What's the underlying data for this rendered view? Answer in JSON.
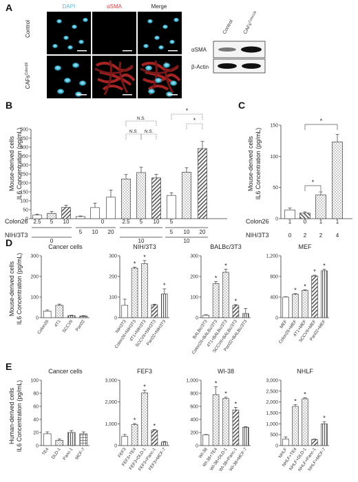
{
  "panel_a": {
    "label": "A",
    "columns": [
      "DAPI",
      "αSMA",
      "Merge"
    ],
    "column_colors": [
      "#5fb8d6",
      "#d94040",
      "#ffffff"
    ],
    "rows": [
      "Control",
      "CAFs^Colon26"
    ],
    "blot": {
      "lanes": [
        "Control",
        "CAFs^Colon26"
      ],
      "bands": [
        "αSMA",
        "β-Actin"
      ]
    }
  },
  "panel_b": {
    "label": "B",
    "ylabel": [
      "Mouse-derived cells",
      "IL6 Concentration (pg/mL)"
    ],
    "row_labels": [
      "Colon26",
      "NIH/3T3"
    ],
    "colon26_ticks": [
      "2.5",
      "5",
      "10",
      "0",
      "2.5",
      "5",
      "10",
      "5"
    ],
    "nih_group_labels": [
      "0",
      "10",
      "10"
    ],
    "nih_ticks": [
      "5",
      "10",
      "20",
      "5",
      "10",
      "20"
    ],
    "sig": [
      "N.S.",
      "N.S.",
      "N.S.",
      "*",
      "*"
    ]
  },
  "panel_c": {
    "label": "C",
    "ylabel": [
      "Mouse-derived cells",
      "IL6 Concentration (pg/mL)"
    ],
    "row_labels": [
      "Colon26",
      "NIH/3T3"
    ],
    "colon26_values": [
      "1",
      "0",
      "1",
      "1"
    ],
    "nih_values": [
      "0",
      "2",
      "2",
      "4"
    ],
    "sig": [
      "*",
      "*"
    ]
  },
  "panel_d": {
    "label": "D",
    "ylabel": [
      "Mouse-derived cells",
      "IL6 Concentration (pg/mL)"
    ],
    "titles": [
      "Cancer cells",
      "NIH/3T3",
      "BALBc/3T3",
      "MEF"
    ]
  },
  "panel_e": {
    "label": "E",
    "ylabel": [
      "Human-derived cells",
      "IL6 Concentration (pg/mL)"
    ],
    "titles": [
      "Cancer cells",
      "FEF3",
      "WI-38",
      "NHLF"
    ]
  },
  "chart_data": [
    {
      "type": "bar",
      "panel": "B",
      "categories": [
        "2.5",
        "5",
        "10",
        "0/5",
        "0/10",
        "0/20",
        "2.5",
        "5",
        "10",
        "5/5",
        "5/10",
        "5/20"
      ],
      "values": [
        20,
        30,
        63,
        12,
        62,
        120,
        222,
        258,
        228,
        130,
        260,
        392
      ],
      "errors": [
        5,
        10,
        12,
        3,
        25,
        40,
        25,
        30,
        20,
        15,
        25,
        40
      ],
      "ylim": [
        0,
        500
      ],
      "yticks": [
        0,
        50,
        100,
        150,
        200,
        250,
        300,
        350,
        400,
        450,
        500
      ]
    },
    {
      "type": "bar",
      "panel": "C",
      "categories": [
        "1/0",
        "0/2",
        "1/2",
        "1/4"
      ],
      "values": [
        14,
        9,
        38,
        123
      ],
      "errors": [
        3,
        2,
        5,
        12
      ],
      "ylim": [
        0,
        150
      ],
      "yticks": [
        0,
        50,
        100,
        150
      ]
    },
    {
      "type": "bar",
      "panel": "D",
      "title": "Cancer cells",
      "categories": [
        "Colon26",
        "4T1",
        "SCCVII",
        "Pan02"
      ],
      "values": [
        32,
        60,
        10,
        8
      ],
      "errors": [
        5,
        6,
        2,
        2
      ],
      "ylim": [
        0,
        300
      ],
      "yticks": [
        0,
        100,
        200,
        300
      ]
    },
    {
      "type": "bar",
      "panel": "D",
      "title": "NIH/3T3",
      "categories": [
        "NIH3T3",
        "Colon26+NIH3T3",
        "4T1+NIH3T3",
        "SCCVII+NIH3T3",
        "Pan02+NIH3T3"
      ],
      "values": [
        60,
        240,
        262,
        62,
        115
      ],
      "errors": [
        30,
        5,
        15,
        3,
        25
      ],
      "ylim": [
        0,
        300
      ],
      "yticks": [
        0,
        100,
        200,
        300
      ],
      "sig": [
        "",
        "*",
        "*",
        "",
        "*"
      ]
    },
    {
      "type": "bar",
      "panel": "D",
      "title": "BALBc/3T3",
      "categories": [
        "BALBc/3T3",
        "Colon26+BALBc/3T3",
        "4T1+BALBc/3T3",
        "SCCVII+BALBc/3T3",
        "Pan02+BALBc/3T3"
      ],
      "values": [
        12,
        165,
        220,
        60,
        20
      ],
      "errors": [
        2,
        10,
        15,
        3,
        25
      ],
      "ylim": [
        0,
        300
      ],
      "yticks": [
        0,
        100,
        200,
        300
      ],
      "sig": [
        "",
        "*",
        "*",
        "*",
        ""
      ]
    },
    {
      "type": "bar",
      "panel": "D",
      "title": "MEF",
      "categories": [
        "MEF",
        "Colon26+MEF",
        "4T1+MEF",
        "SCCVII+MEF",
        "Pan02+MEF"
      ],
      "values": [
        400,
        455,
        530,
        810,
        910
      ],
      "errors": [
        5,
        10,
        10,
        15,
        30
      ],
      "ylim": [
        0,
        1200
      ],
      "yticks": [
        0,
        400,
        800,
        1200
      ],
      "ytick_labels": [
        "0",
        "400",
        "800",
        "1,200"
      ],
      "sig": [
        "",
        "*",
        "*",
        "*",
        "*"
      ]
    },
    {
      "type": "bar",
      "panel": "E",
      "title": "Cancer cells",
      "categories": [
        "TE4",
        "DLD-1",
        "Panc-1",
        "MCF-7"
      ],
      "values": [
        18,
        8,
        20,
        18
      ],
      "errors": [
        3,
        2,
        3,
        3
      ],
      "ylim": [
        0,
        100
      ],
      "yticks": [
        0,
        20,
        40,
        60,
        80,
        100
      ]
    },
    {
      "type": "bar",
      "panel": "E",
      "title": "FEF3",
      "categories": [
        "FEF3",
        "FEF3+TE4",
        "FEF3+DLD-1",
        "FEF3+Panc-1",
        "FEF3+MCF-7"
      ],
      "values": [
        420,
        960,
        2420,
        700,
        160
      ],
      "errors": [
        90,
        50,
        120,
        40,
        30
      ],
      "ylim": [
        0,
        3000
      ],
      "yticks": [
        0,
        1000,
        2000,
        3000
      ],
      "ytick_labels": [
        "0",
        "1,000",
        "2,000",
        "3,000"
      ],
      "sig": [
        "",
        "*",
        "*",
        "*",
        ""
      ]
    },
    {
      "type": "bar",
      "panel": "E",
      "title": "WI-38",
      "categories": [
        "WI-38",
        "WI-38+TE4",
        "WI-38+DLD-1",
        "WI-38+Panc-1",
        "WI-38+MCF-7"
      ],
      "values": [
        165,
        780,
        720,
        545,
        280
      ],
      "errors": [
        5,
        120,
        20,
        40,
        10
      ],
      "ylim": [
        0,
        1000
      ],
      "yticks": [
        0,
        200,
        400,
        600,
        800,
        1000
      ],
      "ytick_labels": [
        "0",
        "200",
        "400",
        "600",
        "800",
        "1,000"
      ],
      "sig": [
        "",
        "*",
        "*",
        "*",
        ""
      ]
    },
    {
      "type": "bar",
      "panel": "E",
      "title": "NHLF",
      "categories": [
        "NHLF",
        "NHLF+TE4",
        "NHLF+DLD-1",
        "NHLF+Panc-1",
        "NHLF+MCF-7"
      ],
      "values": [
        300,
        1800,
        2150,
        280,
        1000
      ],
      "errors": [
        100,
        80,
        40,
        20,
        100
      ],
      "ylim": [
        0,
        3000
      ],
      "yticks": [
        0,
        500,
        1000,
        1500,
        2000,
        2500,
        3000
      ],
      "ytick_labels": [
        "0",
        "500",
        "1,000",
        "1,500",
        "2,000",
        "2,500",
        "3,000"
      ],
      "sig": [
        "",
        "*",
        "*",
        "",
        "*"
      ]
    }
  ]
}
